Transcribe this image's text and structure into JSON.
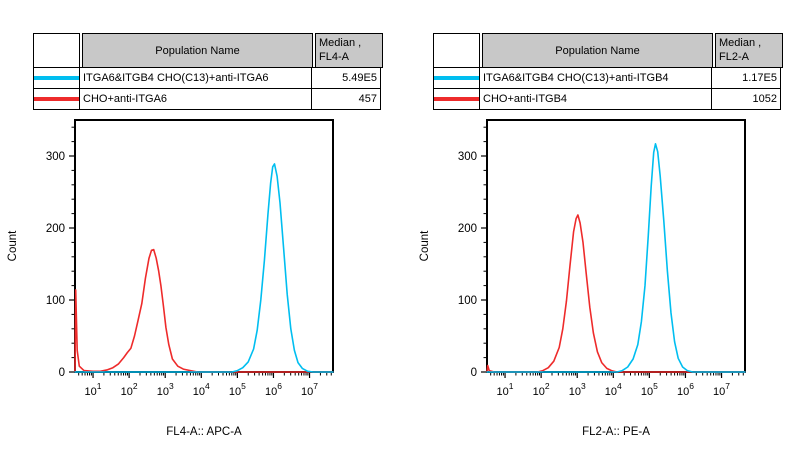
{
  "window": {
    "background": "#ffffff"
  },
  "colors": {
    "cyan_series": "#00BEF0",
    "red_series": "#EE2B2B",
    "header_gray": "#c8c8c8",
    "axis_black": "#000000"
  },
  "tables": [
    {
      "corner": "",
      "columns": {
        "population": "Population Name",
        "median_line1": "Median ,",
        "median_line2": "FL4-A"
      },
      "rows": [
        {
          "name": "ITGA6&ITGB4 CHO(C13)+anti-ITGA6",
          "median": "5.49E5",
          "color": "#00BEF0"
        },
        {
          "name": "CHO+anti-ITGA6",
          "median": "457",
          "color": "#EE2B2B"
        }
      ]
    },
    {
      "corner": "",
      "columns": {
        "population": "Population Name",
        "median_line1": "Median ,",
        "median_line2": "FL2-A"
      },
      "rows": [
        {
          "name": "ITGA6&ITGB4 CHO(C13)+anti-ITGB4",
          "median": "1.17E5",
          "color": "#00BEF0"
        },
        {
          "name": "CHO+anti-ITGB4",
          "median": "1052",
          "color": "#EE2B2B"
        }
      ]
    }
  ],
  "chart_data": [
    {
      "type": "line",
      "title": "",
      "xlabel": "FL4-A:: APC-A",
      "ylabel": "Count",
      "xscale": "log",
      "xlim_log": [
        0.5,
        7.65
      ],
      "xticks_exponents": [
        1,
        2,
        3,
        4,
        5,
        6,
        7
      ],
      "ylim": [
        0,
        350
      ],
      "yticks": [
        0,
        100,
        200,
        300
      ],
      "y_minor_step": 20,
      "grid": false,
      "legend_position": "table-above",
      "series": [
        {
          "name": "CHO+anti-ITGA6",
          "color": "#EE2B2B",
          "median": "457",
          "peak_logx": 2.65,
          "peak_count": 170,
          "points_logx_count": [
            [
              0.5,
              0
            ],
            [
              0.52,
              114
            ],
            [
              0.56,
              30
            ],
            [
              0.62,
              8
            ],
            [
              0.75,
              2
            ],
            [
              1.0,
              1
            ],
            [
              1.2,
              1
            ],
            [
              1.4,
              3
            ],
            [
              1.55,
              6
            ],
            [
              1.7,
              11
            ],
            [
              1.85,
              20
            ],
            [
              1.95,
              27
            ],
            [
              2.05,
              33
            ],
            [
              2.15,
              50
            ],
            [
              2.25,
              72
            ],
            [
              2.35,
              95
            ],
            [
              2.45,
              130
            ],
            [
              2.55,
              158
            ],
            [
              2.62,
              169
            ],
            [
              2.68,
              170
            ],
            [
              2.75,
              158
            ],
            [
              2.82,
              140
            ],
            [
              2.88,
              120
            ],
            [
              2.95,
              92
            ],
            [
              3.02,
              62
            ],
            [
              3.1,
              38
            ],
            [
              3.2,
              18
            ],
            [
              3.35,
              8
            ],
            [
              3.5,
              4
            ],
            [
              3.7,
              2
            ],
            [
              3.9,
              0
            ],
            [
              7.65,
              0
            ]
          ]
        },
        {
          "name": "ITGA6&ITGB4 CHO(C13)+anti-ITGA6",
          "color": "#00BEF0",
          "median": "5.49E5",
          "peak_logx": 6.0,
          "peak_count": 289,
          "points_logx_count": [
            [
              0.5,
              0
            ],
            [
              4.85,
              0
            ],
            [
              5.0,
              2
            ],
            [
              5.15,
              6
            ],
            [
              5.3,
              14
            ],
            [
              5.45,
              32
            ],
            [
              5.55,
              58
            ],
            [
              5.65,
              100
            ],
            [
              5.75,
              155
            ],
            [
              5.85,
              220
            ],
            [
              5.92,
              262
            ],
            [
              5.98,
              285
            ],
            [
              6.03,
              289
            ],
            [
              6.1,
              272
            ],
            [
              6.18,
              235
            ],
            [
              6.28,
              172
            ],
            [
              6.38,
              108
            ],
            [
              6.48,
              60
            ],
            [
              6.58,
              30
            ],
            [
              6.68,
              13
            ],
            [
              6.8,
              5
            ],
            [
              6.95,
              1
            ],
            [
              7.1,
              0
            ],
            [
              7.65,
              0
            ]
          ]
        }
      ]
    },
    {
      "type": "line",
      "title": "",
      "xlabel": "FL2-A:: PE-A",
      "ylabel": "Count",
      "xscale": "log",
      "xlim_log": [
        0.5,
        7.65
      ],
      "xticks_exponents": [
        1,
        2,
        3,
        4,
        5,
        6,
        7
      ],
      "ylim": [
        0,
        350
      ],
      "yticks": [
        0,
        100,
        200,
        300
      ],
      "y_minor_step": 20,
      "grid": false,
      "legend_position": "table-above",
      "series": [
        {
          "name": "CHO+anti-ITGB4",
          "color": "#EE2B2B",
          "median": "1052",
          "peak_logx": 3.02,
          "peak_count": 218,
          "points_logx_count": [
            [
              0.5,
              0
            ],
            [
              0.52,
              9
            ],
            [
              0.56,
              2
            ],
            [
              0.7,
              0
            ],
            [
              1.9,
              0
            ],
            [
              2.05,
              2
            ],
            [
              2.2,
              6
            ],
            [
              2.35,
              15
            ],
            [
              2.5,
              34
            ],
            [
              2.6,
              60
            ],
            [
              2.7,
              98
            ],
            [
              2.8,
              148
            ],
            [
              2.9,
              195
            ],
            [
              2.97,
              213
            ],
            [
              3.02,
              218
            ],
            [
              3.08,
              207
            ],
            [
              3.16,
              180
            ],
            [
              3.25,
              137
            ],
            [
              3.35,
              90
            ],
            [
              3.45,
              54
            ],
            [
              3.56,
              28
            ],
            [
              3.68,
              13
            ],
            [
              3.82,
              5
            ],
            [
              3.95,
              2
            ],
            [
              4.1,
              0
            ],
            [
              7.65,
              0
            ]
          ]
        },
        {
          "name": "ITGA6&ITGB4 CHO(C13)+anti-ITGB4",
          "color": "#00BEF0",
          "median": "1.17E5",
          "peak_logx": 5.17,
          "peak_count": 317,
          "points_logx_count": [
            [
              0.5,
              0
            ],
            [
              4.1,
              0
            ],
            [
              4.25,
              2
            ],
            [
              4.4,
              7
            ],
            [
              4.55,
              18
            ],
            [
              4.68,
              38
            ],
            [
              4.78,
              70
            ],
            [
              4.88,
              120
            ],
            [
              4.97,
              190
            ],
            [
              5.05,
              258
            ],
            [
              5.12,
              305
            ],
            [
              5.17,
              317
            ],
            [
              5.23,
              306
            ],
            [
              5.3,
              272
            ],
            [
              5.4,
              210
            ],
            [
              5.5,
              140
            ],
            [
              5.6,
              82
            ],
            [
              5.7,
              42
            ],
            [
              5.8,
              19
            ],
            [
              5.92,
              7
            ],
            [
              6.05,
              2
            ],
            [
              6.2,
              0
            ],
            [
              7.65,
              0
            ]
          ]
        }
      ]
    }
  ]
}
